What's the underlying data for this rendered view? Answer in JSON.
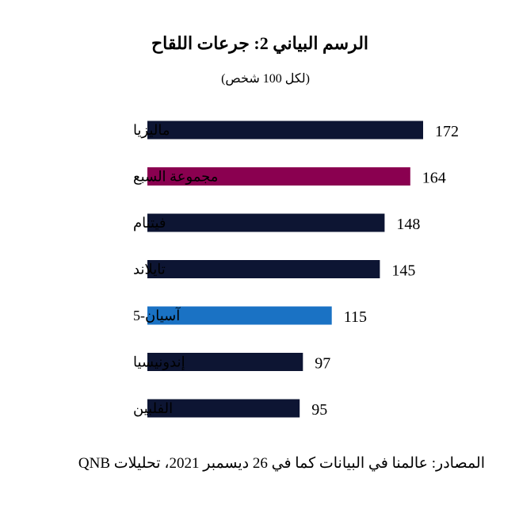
{
  "chart_data": {
    "type": "bar",
    "orientation": "horizontal",
    "title": "الرسم البياني 2: جرعات اللقاح",
    "subtitle": "(لكل 100 شخص)",
    "categories": [
      "ماليزيا",
      "مجموعة السبع",
      "فيتنام",
      "تايلاند",
      "آسيان-5",
      "إندونيسيا",
      "الفلبين"
    ],
    "values": [
      172,
      164,
      148,
      145,
      115,
      97,
      95
    ],
    "bar_colors": [
      "#0d1533",
      "#8a0050",
      "#0d1533",
      "#0d1533",
      "#1a72c4",
      "#0d1533",
      "#0d1533"
    ],
    "xlim": [
      0,
      172
    ],
    "grid": false,
    "legend": "none"
  },
  "source": "المصادر: عالمنا في البيانات كما في 26 ديسمبر 2021، تحليلات QNB"
}
